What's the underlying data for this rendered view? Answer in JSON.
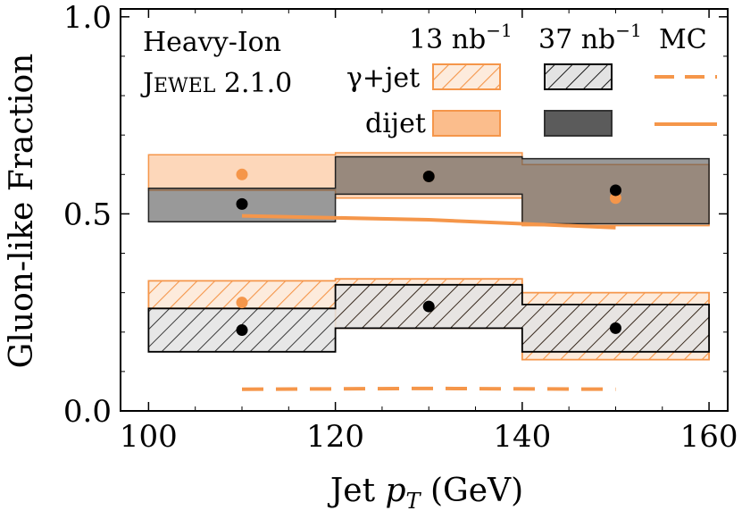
{
  "chart_data": {
    "type": "step-band",
    "xlabel_main": "Jet ",
    "xlabel_var": "p",
    "xlabel_sub": "T",
    "xlabel_unit": " (GeV)",
    "ylabel": "Gluon-like Fraction",
    "xlim": [
      97,
      162
    ],
    "ylim": [
      0.0,
      1.02
    ],
    "xticks": [
      100,
      120,
      140,
      160
    ],
    "xtick_labels": [
      "100",
      "120",
      "140",
      "160"
    ],
    "yticks": [
      0.0,
      0.5,
      1.0
    ],
    "ytick_labels": [
      "0.0",
      "0.5",
      "1.0"
    ],
    "annotation_line1": "Heavy-Ion",
    "annotation_line2_cap1": "J",
    "annotation_line2_small": "EWEL",
    "annotation_line2_rest": " 2.1.0",
    "legend": {
      "col_13": "13 nb",
      "col_37": "37 nb",
      "col_exp": "−1",
      "col_mc": "MC",
      "row_gammajet": "γ+jet",
      "row_dijet": "dijet"
    },
    "bin_edges": [
      100,
      120,
      140,
      160
    ],
    "series": [
      {
        "name": "dijet 13 nb-1",
        "color": "#f5964a",
        "style": "filled-light",
        "low": [
          0.56,
          0.54,
          0.47
        ],
        "high": [
          0.65,
          0.655,
          0.625
        ],
        "points_x": [
          110,
          130,
          150
        ],
        "points_y": [
          0.6,
          0.595,
          0.54
        ]
      },
      {
        "name": "dijet 37 nb-1",
        "color": "#555555",
        "style": "filled-dark",
        "low": [
          0.48,
          0.55,
          0.475
        ],
        "high": [
          0.565,
          0.645,
          0.64
        ],
        "points_x": [
          110,
          130,
          150
        ],
        "points_y": [
          0.525,
          0.595,
          0.56
        ]
      },
      {
        "name": "gamma+jet 13 nb-1",
        "color": "#f5964a",
        "style": "hatched-light",
        "low": [
          0.26,
          0.21,
          0.13
        ],
        "high": [
          0.33,
          0.335,
          0.3
        ],
        "points_x": [
          110
        ],
        "points_y": [
          0.275
        ]
      },
      {
        "name": "gamma+jet 37 nb-1",
        "color": "#000000",
        "style": "hatched-dark",
        "low": [
          0.15,
          0.21,
          0.15
        ],
        "high": [
          0.26,
          0.32,
          0.27
        ],
        "points_x": [
          110,
          130,
          150
        ],
        "points_y": [
          0.205,
          0.265,
          0.21
        ]
      },
      {
        "name": "dijet MC",
        "color": "#f5964a",
        "style": "solid",
        "x": [
          110,
          130,
          150
        ],
        "y": [
          0.495,
          0.485,
          0.465
        ]
      },
      {
        "name": "gamma+jet MC",
        "color": "#f5964a",
        "style": "dashed",
        "x": [
          110,
          130,
          150
        ],
        "y": [
          0.055,
          0.057,
          0.055
        ]
      }
    ]
  }
}
